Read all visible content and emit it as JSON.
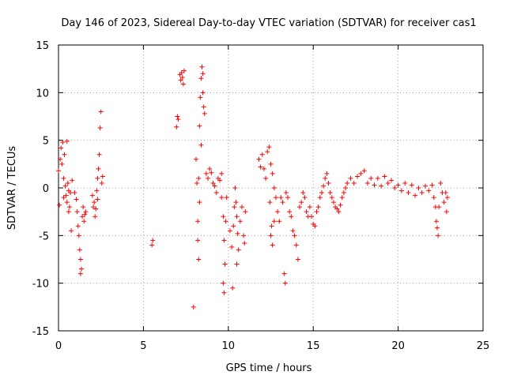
{
  "chart_data": {
    "type": "scatter",
    "title": "Day 146 of 2023, Sidereal Day-to-day VTEC variation (SDTVAR) for receiver cas1",
    "xlabel": "GPS time / hours",
    "ylabel": "SDTVAR / TECUs",
    "xlim": [
      0,
      25
    ],
    "ylim": [
      -15,
      15
    ],
    "xticks": [
      "0",
      "5",
      "10",
      "15",
      "20",
      "25"
    ],
    "yticks": [
      "15",
      "10",
      "5",
      "0",
      "-5",
      "-10",
      "-15"
    ],
    "grid": true,
    "marker": "plus",
    "color": "#ff0000",
    "series": [
      {
        "name": "SDTVAR",
        "points": [
          [
            0.0,
            1.8
          ],
          [
            0.05,
            -1.8
          ],
          [
            0.1,
            3.0
          ],
          [
            0.15,
            4.2
          ],
          [
            0.2,
            2.5
          ],
          [
            0.25,
            4.8
          ],
          [
            0.3,
            1.0
          ],
          [
            0.35,
            3.5
          ],
          [
            0.4,
            0.2
          ],
          [
            0.45,
            -0.8
          ],
          [
            0.5,
            -1.5
          ],
          [
            0.55,
            0.5
          ],
          [
            0.6,
            -2.5
          ],
          [
            0.65,
            -2.0
          ],
          [
            0.7,
            -0.5
          ],
          [
            0.75,
            -4.5
          ],
          [
            0.8,
            0.8
          ],
          [
            0.5,
            4.9
          ],
          [
            0.3,
            -1.0
          ],
          [
            0.6,
            -0.3
          ],
          [
            0.95,
            -0.5
          ],
          [
            1.05,
            -1.2
          ],
          [
            1.1,
            -2.5
          ],
          [
            1.15,
            -4.0
          ],
          [
            1.2,
            -5.0
          ],
          [
            1.25,
            -6.5
          ],
          [
            1.3,
            -7.5
          ],
          [
            1.35,
            -8.5
          ],
          [
            1.3,
            -9.0
          ],
          [
            1.4,
            -3.0
          ],
          [
            1.45,
            -2.0
          ],
          [
            1.5,
            -3.5
          ],
          [
            1.55,
            -2.8
          ],
          [
            1.6,
            -2.5
          ],
          [
            2.0,
            -0.8
          ],
          [
            2.05,
            -2.0
          ],
          [
            2.1,
            -1.5
          ],
          [
            2.15,
            -3.0
          ],
          [
            2.2,
            -2.2
          ],
          [
            2.25,
            -0.3
          ],
          [
            2.3,
            1.0
          ],
          [
            2.35,
            2.0
          ],
          [
            2.4,
            3.5
          ],
          [
            2.45,
            6.3
          ],
          [
            2.5,
            8.0
          ],
          [
            2.55,
            0.5
          ],
          [
            2.6,
            1.2
          ],
          [
            2.3,
            -1.2
          ],
          [
            5.5,
            -6.0
          ],
          [
            5.55,
            -5.5
          ],
          [
            6.95,
            6.4
          ],
          [
            7.0,
            7.5
          ],
          [
            7.05,
            7.2
          ],
          [
            7.15,
            11.9
          ],
          [
            7.2,
            11.3
          ],
          [
            7.25,
            12.1
          ],
          [
            7.3,
            11.6
          ],
          [
            7.35,
            10.9
          ],
          [
            7.4,
            12.3
          ],
          [
            7.95,
            -12.5
          ],
          [
            8.1,
            3.0
          ],
          [
            8.15,
            0.5
          ],
          [
            8.2,
            -3.5
          ],
          [
            8.25,
            -7.5
          ],
          [
            8.2,
            -5.5
          ],
          [
            8.25,
            1.0
          ],
          [
            8.3,
            6.5
          ],
          [
            8.35,
            9.5
          ],
          [
            8.4,
            11.5
          ],
          [
            8.45,
            12.7
          ],
          [
            8.5,
            10.0
          ],
          [
            8.55,
            8.5
          ],
          [
            8.6,
            7.8
          ],
          [
            8.3,
            -1.5
          ],
          [
            8.4,
            4.5
          ],
          [
            8.5,
            12.0
          ],
          [
            8.7,
            1.5
          ],
          [
            8.8,
            1.0
          ],
          [
            8.9,
            2.0
          ],
          [
            9.0,
            1.6
          ],
          [
            9.1,
            0.5
          ],
          [
            9.2,
            0.2
          ],
          [
            9.3,
            -0.5
          ],
          [
            9.4,
            1.0
          ],
          [
            9.5,
            0.8
          ],
          [
            9.6,
            -1.0
          ],
          [
            9.7,
            -3.0
          ],
          [
            9.75,
            -5.5
          ],
          [
            9.8,
            -8.0
          ],
          [
            9.7,
            -10.0
          ],
          [
            9.75,
            -11.0
          ],
          [
            9.85,
            -3.5
          ],
          [
            9.9,
            -1.0
          ],
          [
            9.6,
            1.5
          ],
          [
            10.1,
            -4.5
          ],
          [
            10.2,
            -6.2
          ],
          [
            10.25,
            -10.5
          ],
          [
            10.3,
            -4.0
          ],
          [
            10.35,
            -2.0
          ],
          [
            10.4,
            0.0
          ],
          [
            10.45,
            -1.5
          ],
          [
            10.5,
            -3.0
          ],
          [
            10.55,
            -4.8
          ],
          [
            10.6,
            -6.5
          ],
          [
            10.7,
            -3.5
          ],
          [
            10.8,
            -2.0
          ],
          [
            10.9,
            -5.0
          ],
          [
            10.95,
            -5.8
          ],
          [
            11.0,
            -2.5
          ],
          [
            10.5,
            -8.0
          ],
          [
            11.8,
            3.0
          ],
          [
            11.9,
            2.2
          ],
          [
            12.0,
            3.5
          ],
          [
            12.1,
            2.0
          ],
          [
            12.2,
            1.0
          ],
          [
            12.3,
            3.8
          ],
          [
            12.4,
            4.3
          ],
          [
            12.5,
            2.5
          ],
          [
            12.6,
            1.5
          ],
          [
            12.7,
            0.0
          ],
          [
            12.8,
            -1.0
          ],
          [
            12.9,
            -2.5
          ],
          [
            13.0,
            -3.5
          ],
          [
            12.45,
            -1.5
          ],
          [
            12.55,
            -4.0
          ],
          [
            12.6,
            -6.0
          ],
          [
            12.7,
            -3.5
          ],
          [
            12.5,
            -5.0
          ],
          [
            13.1,
            -1.0
          ],
          [
            13.2,
            -1.5
          ],
          [
            13.3,
            -9.0
          ],
          [
            13.35,
            -10.0
          ],
          [
            13.4,
            -0.5
          ],
          [
            13.5,
            -1.0
          ],
          [
            13.6,
            -2.5
          ],
          [
            13.7,
            -3.0
          ],
          [
            13.8,
            -4.5
          ],
          [
            13.9,
            -5.0
          ],
          [
            14.0,
            -6.0
          ],
          [
            14.1,
            -7.5
          ],
          [
            14.2,
            -2.0
          ],
          [
            14.3,
            -1.5
          ],
          [
            14.4,
            -0.5
          ],
          [
            14.5,
            -1.0
          ],
          [
            14.6,
            -2.5
          ],
          [
            14.7,
            -3.0
          ],
          [
            14.8,
            -2.0
          ],
          [
            14.9,
            -3.0
          ],
          [
            15.0,
            -3.8
          ],
          [
            15.1,
            -4.0
          ],
          [
            15.2,
            -2.5
          ],
          [
            15.3,
            -2.0
          ],
          [
            15.4,
            -1.0
          ],
          [
            15.5,
            -0.5
          ],
          [
            15.6,
            0.2
          ],
          [
            15.7,
            1.0
          ],
          [
            15.8,
            1.5
          ],
          [
            15.9,
            0.5
          ],
          [
            16.0,
            -0.5
          ],
          [
            16.1,
            -1.0
          ],
          [
            16.2,
            -1.5
          ],
          [
            16.3,
            -2.0
          ],
          [
            16.4,
            -2.2
          ],
          [
            16.5,
            -2.5
          ],
          [
            16.6,
            -1.8
          ],
          [
            16.7,
            -1.0
          ],
          [
            16.8,
            -0.5
          ],
          [
            16.9,
            0.0
          ],
          [
            17.0,
            0.5
          ],
          [
            17.2,
            1.0
          ],
          [
            17.4,
            0.5
          ],
          [
            17.6,
            1.2
          ],
          [
            17.8,
            1.5
          ],
          [
            18.0,
            1.8
          ],
          [
            18.2,
            0.5
          ],
          [
            18.4,
            1.0
          ],
          [
            18.6,
            0.3
          ],
          [
            18.8,
            1.0
          ],
          [
            19.0,
            0.2
          ],
          [
            19.2,
            1.2
          ],
          [
            19.4,
            0.5
          ],
          [
            19.6,
            0.8
          ],
          [
            19.8,
            0.0
          ],
          [
            20.0,
            0.3
          ],
          [
            20.2,
            -0.3
          ],
          [
            20.4,
            0.5
          ],
          [
            20.6,
            -0.5
          ],
          [
            20.8,
            0.3
          ],
          [
            21.0,
            -0.8
          ],
          [
            21.2,
            0.0
          ],
          [
            21.4,
            -0.5
          ],
          [
            21.6,
            0.2
          ],
          [
            21.8,
            -0.3
          ],
          [
            22.0,
            0.3
          ],
          [
            22.1,
            -1.0
          ],
          [
            22.2,
            -2.0
          ],
          [
            22.25,
            -3.5
          ],
          [
            22.3,
            -4.2
          ],
          [
            22.35,
            -5.0
          ],
          [
            22.4,
            -2.0
          ],
          [
            22.5,
            0.5
          ],
          [
            22.6,
            -0.5
          ],
          [
            22.7,
            -1.5
          ],
          [
            22.8,
            -0.5
          ],
          [
            22.85,
            -2.5
          ],
          [
            22.9,
            -1.0
          ]
        ]
      }
    ]
  }
}
